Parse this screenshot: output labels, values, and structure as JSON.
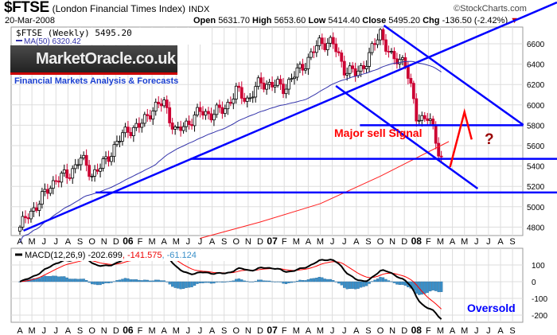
{
  "header": {
    "symbol": "$FTSE",
    "name": "(London Financial Times Index)",
    "exchange": "INDX",
    "date": "20-Mar-2008",
    "open_label": "Open",
    "open": "5631.70",
    "high_label": "High",
    "high": "5653.60",
    "low_label": "Low",
    "low": "5414.40",
    "close_label": "Close",
    "close": "5495.20",
    "chg_label": "Chg",
    "chg": "-136.50 (-2.42%)",
    "copyright": "©StockCharts.com"
  },
  "logo": {
    "text": "MarketOracle.co.uk",
    "tagline": "Financial Markets Analysis & Forecasts"
  },
  "colors": {
    "up": "#000000",
    "down": "#cc0033",
    "ma50": "#3333aa",
    "ma200": "#ff2020",
    "trend": "#0000ff",
    "macd": "#000000",
    "signal": "#ff0000",
    "hist": "#3a8fc8"
  },
  "chart_data": [
    {
      "type": "candlestick",
      "title": "$FTSE (Weekly) 5495.20",
      "legend": [
        "$FTSE (Weekly) 5495.20",
        "MA(50) 6320.42"
      ],
      "ylim": [
        4700,
        6800
      ],
      "yticks": [
        4800,
        5000,
        5200,
        5400,
        5600,
        5800,
        6000,
        6200,
        6400,
        6600
      ],
      "x_start": "Apr 2005",
      "x_end": "Sep 2008",
      "month_labels": [
        "A",
        "M",
        "J",
        "J",
        "A",
        "S",
        "O",
        "N",
        "D",
        "06",
        "F",
        "M",
        "A",
        "M",
        "J",
        "J",
        "A",
        "S",
        "O",
        "N",
        "D",
        "07",
        "F",
        "M",
        "A",
        "M",
        "J",
        "J",
        "A",
        "S",
        "O",
        "N",
        "D",
        "08",
        "F",
        "M",
        "A",
        "M",
        "J",
        "J",
        "A",
        "S"
      ],
      "monthly_closes": [
        4800,
        4960,
        5110,
        5280,
        5300,
        5480,
        5320,
        5420,
        5620,
        5760,
        5790,
        5960,
        6020,
        5720,
        5830,
        5930,
        5910,
        5960,
        6130,
        6050,
        6220,
        6200,
        6170,
        6310,
        6450,
        6620,
        6610,
        6360,
        6300,
        6460,
        6720,
        6430,
        6460,
        5880,
        5880,
        5495
      ],
      "ma200_points": [
        [
          15,
          4690
        ],
        [
          20,
          4850
        ],
        [
          25,
          5030
        ],
        [
          30,
          5300
        ],
        [
          35.7,
          5640
        ]
      ],
      "annotations": {
        "lines": [
          {
            "name": "uptrend-line",
            "from": [
              0.3,
              4765
            ],
            "to": [
              44.7,
              7006
            ]
          },
          {
            "name": "upper-channel-line",
            "from": [
              30.3,
              6780
            ],
            "to": [
              41.9,
              5803
            ]
          },
          {
            "name": "lower-channel-line",
            "from": [
              26.3,
              6186
            ],
            "to": [
              38.1,
              5178
            ]
          },
          {
            "name": "resistance-5800",
            "from": [
              28.3,
              5800
            ],
            "to": [
              41.9,
              5800
            ]
          },
          {
            "name": "support-5470",
            "from": [
              14.2,
              5470
            ],
            "to": [
              45,
              5470
            ]
          },
          {
            "name": "support-5140",
            "from": [
              6.3,
              5140
            ],
            "to": [
              45,
              5140
            ]
          }
        ],
        "projection": [
          [
            35.8,
            5390
          ],
          [
            37,
            5930
          ],
          [
            37.6,
            5660
          ]
        ],
        "sell_text": "Major sell Signal",
        "question": "?"
      }
    },
    {
      "type": "line",
      "title": "MACD(12,26,9)",
      "legend": {
        "label": "MACD(12,26,9)",
        "macd": "-202.699",
        "signal": ", -141.575",
        "hist": ", -61.124"
      },
      "ylim": [
        -250,
        180
      ],
      "yticks": [
        100,
        0,
        -100,
        -200
      ],
      "annotation": "Oversold"
    }
  ]
}
